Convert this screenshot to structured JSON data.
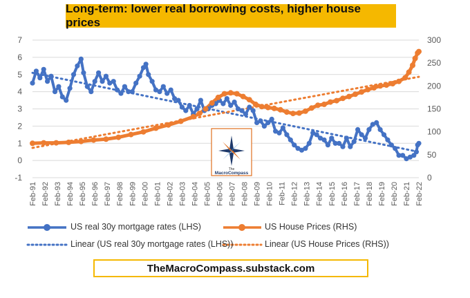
{
  "title": "Long-term: lower real borrowing costs, higher house prices",
  "footer": "TheMacroCompass.substack.com",
  "logo": {
    "text_line1": "The",
    "text_line2": "MacroCompass"
  },
  "colors": {
    "mortgage": "#4472c4",
    "house": "#ed7d31",
    "grid": "#d9d9d9",
    "title_bg": "#f5b800"
  },
  "chart_data": {
    "type": "line",
    "xlabel": "",
    "y_left": {
      "min": -1,
      "max": 7,
      "ticks": [
        -1,
        0,
        1,
        2,
        3,
        4,
        5,
        6,
        7
      ]
    },
    "y_right": {
      "min": 0,
      "max": 300,
      "ticks": [
        0,
        50,
        100,
        150,
        200,
        250,
        300
      ]
    },
    "x_ticks": [
      "Feb-91",
      "Feb-92",
      "Feb-93",
      "Feb-94",
      "Feb-95",
      "Feb-96",
      "Feb-97",
      "Feb-98",
      "Feb-99",
      "Feb-00",
      "Feb-01",
      "Feb-02",
      "Feb-03",
      "Feb-04",
      "Feb-05",
      "Feb-06",
      "Feb-07",
      "Feb-08",
      "Feb-09",
      "Feb-10",
      "Feb-11",
      "Feb-12",
      "Feb-13",
      "Feb-14",
      "Feb-15",
      "Feb-16",
      "Feb-17",
      "Feb-18",
      "Feb-19",
      "Feb-20",
      "Feb-21",
      "Feb-22"
    ],
    "grid": true,
    "legend_position": "bottom",
    "series": [
      {
        "name": "US real 30y mortgage rates (LHS)",
        "axis": "left",
        "x": [
          1991.1,
          1991.4,
          1991.7,
          1992.0,
          1992.3,
          1992.6,
          1992.9,
          1993.2,
          1993.5,
          1993.8,
          1994.1,
          1994.4,
          1994.7,
          1995.0,
          1995.2,
          1995.5,
          1995.8,
          1996.1,
          1996.4,
          1996.7,
          1997.0,
          1997.3,
          1997.6,
          1997.9,
          1998.2,
          1998.5,
          1998.8,
          1999.1,
          1999.4,
          1999.7,
          2000.0,
          2000.2,
          2000.4,
          2000.7,
          2001.0,
          2001.3,
          2001.6,
          2001.9,
          2002.2,
          2002.5,
          2002.8,
          2003.1,
          2003.4,
          2003.7,
          2004.0,
          2004.3,
          2004.6,
          2004.9,
          2005.2,
          2005.5,
          2005.8,
          2006.1,
          2006.4,
          2006.7,
          2007.0,
          2007.3,
          2007.6,
          2007.9,
          2008.2,
          2008.5,
          2008.8,
          2009.1,
          2009.4,
          2009.7,
          2010.0,
          2010.3,
          2010.6,
          2010.9,
          2011.2,
          2011.5,
          2011.8,
          2012.1,
          2012.4,
          2012.7,
          2013.0,
          2013.3,
          2013.6,
          2013.9,
          2014.2,
          2014.5,
          2014.8,
          2015.1,
          2015.4,
          2015.7,
          2016.0,
          2016.3,
          2016.6,
          2016.9,
          2017.2,
          2017.5,
          2017.8,
          2018.1,
          2018.4,
          2018.7,
          2019.0,
          2019.3,
          2019.6,
          2019.9,
          2020.2,
          2020.5,
          2020.8,
          2021.1,
          2021.4,
          2021.7,
          2021.9,
          2022.0,
          2022.1
        ],
        "values": [
          4.5,
          5.2,
          4.8,
          5.3,
          4.6,
          4.9,
          4.0,
          4.3,
          3.7,
          3.5,
          4.2,
          5.0,
          5.5,
          5.9,
          5.1,
          4.3,
          4.0,
          4.6,
          5.1,
          4.6,
          4.9,
          4.5,
          4.6,
          4.1,
          3.9,
          4.3,
          4.0,
          4.0,
          4.5,
          4.9,
          5.4,
          5.6,
          5.0,
          4.6,
          4.1,
          4.0,
          4.3,
          3.9,
          4.1,
          3.6,
          3.5,
          3.1,
          2.9,
          3.2,
          2.7,
          3.0,
          3.5,
          2.9,
          3.0,
          3.2,
          3.3,
          3.5,
          3.3,
          3.6,
          3.2,
          3.4,
          3.0,
          2.9,
          2.7,
          3.1,
          2.9,
          2.2,
          2.3,
          2.0,
          2.2,
          2.4,
          1.7,
          1.6,
          1.9,
          1.5,
          1.2,
          0.9,
          0.7,
          0.6,
          0.7,
          1.0,
          1.6,
          1.5,
          1.3,
          1.2,
          0.9,
          1.3,
          1.0,
          1.0,
          0.8,
          1.3,
          0.8,
          1.1,
          1.8,
          1.5,
          1.3,
          1.8,
          2.1,
          2.2,
          1.8,
          1.5,
          1.2,
          0.9,
          0.7,
          0.3,
          0.3,
          0.1,
          0.2,
          0.3,
          0.5,
          0.9,
          1.0
        ]
      },
      {
        "name": "US House Prices (RHS)",
        "axis": "right",
        "x": [
          1991.1,
          1992.0,
          1993.0,
          1994.0,
          1995.0,
          1996.0,
          1997.0,
          1998.0,
          1999.0,
          2000.0,
          2001.0,
          2002.0,
          2003.0,
          2004.0,
          2004.5,
          2005.0,
          2005.5,
          2006.0,
          2006.5,
          2007.0,
          2007.5,
          2008.0,
          2008.5,
          2009.0,
          2009.5,
          2010.0,
          2010.5,
          2011.0,
          2011.5,
          2012.0,
          2012.5,
          2013.0,
          2013.5,
          2014.0,
          2014.5,
          2015.0,
          2015.5,
          2016.0,
          2016.5,
          2017.0,
          2017.5,
          2018.0,
          2018.5,
          2019.0,
          2019.5,
          2020.0,
          2020.5,
          2021.0,
          2021.3,
          2021.6,
          2021.8,
          2022.0,
          2022.1
        ],
        "values": [
          75,
          76,
          76,
          77,
          79,
          82,
          84,
          88,
          94,
          100,
          108,
          115,
          123,
          133,
          140,
          150,
          163,
          175,
          183,
          185,
          183,
          177,
          170,
          160,
          155,
          153,
          151,
          148,
          143,
          140,
          141,
          145,
          152,
          158,
          160,
          165,
          168,
          173,
          177,
          182,
          187,
          192,
          196,
          200,
          202,
          205,
          210,
          218,
          230,
          245,
          260,
          272,
          275
        ]
      },
      {
        "name": "Linear (US real 30y mortgage rates (LHS))",
        "axis": "left",
        "x": [
          1991.1,
          2022.1
        ],
        "values": [
          5.1,
          0.5
        ]
      },
      {
        "name": "Linear (US House Prices (RHS))",
        "axis": "right",
        "x": [
          1991.1,
          2022.1
        ],
        "values": [
          65,
          220
        ]
      }
    ]
  }
}
